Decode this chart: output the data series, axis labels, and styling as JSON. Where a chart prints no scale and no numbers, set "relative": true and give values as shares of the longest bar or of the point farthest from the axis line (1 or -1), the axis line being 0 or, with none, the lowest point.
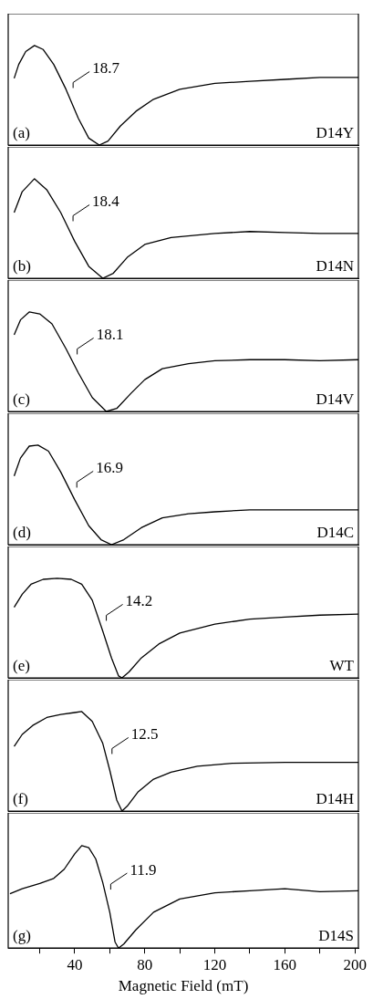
{
  "chart_data": [
    {
      "type": "line",
      "relative": true,
      "tick_labels": false,
      "marker": "none",
      "xlim": [
        2,
        202
      ],
      "x": [
        5.4,
        8,
        12,
        17,
        22,
        28,
        35,
        42,
        48,
        54,
        59,
        66,
        75,
        85,
        100,
        120,
        140,
        160,
        180,
        202
      ],
      "series": [
        {
          "color": "#000000",
          "values": [
            0.67,
            0.81,
            0.94,
            1.0,
            0.96,
            0.81,
            0.56,
            0.27,
            0.07,
            0,
            0.04,
            0.19,
            0.34,
            0.46,
            0.56,
            0.62,
            0.64,
            0.66,
            0.68,
            0.68
          ]
        }
      ],
      "annotations": [
        "(a)",
        "D14Y",
        "18.7"
      ]
    },
    {
      "type": "line",
      "relative": true,
      "tick_labels": false,
      "marker": "none",
      "xlim": [
        2,
        202
      ],
      "x": [
        5.4,
        10,
        17,
        24,
        32,
        40,
        48,
        56,
        62,
        70,
        80,
        95,
        120,
        140,
        160,
        180,
        202
      ],
      "series": [
        {
          "color": "#000000",
          "values": [
            0.66,
            0.87,
            1.0,
            0.89,
            0.66,
            0.37,
            0.12,
            0,
            0.05,
            0.21,
            0.34,
            0.41,
            0.45,
            0.47,
            0.46,
            0.45,
            0.45
          ]
        }
      ],
      "annotations": [
        "(b)",
        "D14N",
        "18.4"
      ]
    },
    {
      "type": "line",
      "relative": true,
      "tick_labels": false,
      "marker": "none",
      "xlim": [
        2,
        202
      ],
      "x": [
        5.4,
        9,
        14,
        20,
        27,
        35,
        42,
        50,
        58,
        64,
        72,
        80,
        90,
        105,
        120,
        140,
        160,
        180,
        202
      ],
      "series": [
        {
          "color": "#000000",
          "values": [
            0.77,
            0.92,
            1.0,
            0.98,
            0.88,
            0.63,
            0.39,
            0.14,
            0,
            0.03,
            0.18,
            0.32,
            0.43,
            0.48,
            0.51,
            0.52,
            0.52,
            0.51,
            0.52
          ]
        }
      ],
      "annotations": [
        "(c)",
        "D14V",
        "18.1"
      ]
    },
    {
      "type": "line",
      "relative": true,
      "tick_labels": false,
      "marker": "none",
      "xlim": [
        2,
        202
      ],
      "x": [
        5.4,
        9,
        14,
        19,
        25,
        32,
        40,
        48,
        55,
        61,
        68,
        78,
        90,
        105,
        120,
        140,
        160,
        180,
        202
      ],
      "series": [
        {
          "color": "#000000",
          "values": [
            0.69,
            0.87,
            0.99,
            1.0,
            0.94,
            0.73,
            0.45,
            0.19,
            0.05,
            0,
            0.05,
            0.17,
            0.27,
            0.31,
            0.33,
            0.35,
            0.35,
            0.35,
            0.35
          ]
        }
      ],
      "annotations": [
        "(d)",
        "D14C",
        "16.9"
      ]
    },
    {
      "type": "line",
      "relative": true,
      "tick_labels": false,
      "marker": "none",
      "xlim": [
        2,
        202
      ],
      "x": [
        5.4,
        10,
        15,
        22,
        30,
        38,
        44,
        50,
        56,
        61,
        65,
        67,
        71,
        78,
        88,
        100,
        120,
        140,
        160,
        180,
        202
      ],
      "series": [
        {
          "color": "#000000",
          "values": [
            0.71,
            0.84,
            0.94,
            0.99,
            1.0,
            0.99,
            0.94,
            0.78,
            0.47,
            0.2,
            0.02,
            0,
            0.06,
            0.2,
            0.34,
            0.45,
            0.54,
            0.59,
            0.61,
            0.63,
            0.64
          ]
        }
      ],
      "annotations": [
        "(e)",
        "WT",
        "14.2"
      ]
    },
    {
      "type": "line",
      "relative": true,
      "tick_labels": false,
      "marker": "none",
      "xlim": [
        2,
        202
      ],
      "x": [
        5.4,
        10,
        16,
        24,
        32,
        40,
        44,
        50,
        56,
        60,
        64,
        67,
        70,
        76,
        85,
        95,
        110,
        130,
        160,
        180,
        202
      ],
      "series": [
        {
          "color": "#000000",
          "values": [
            0.65,
            0.77,
            0.86,
            0.94,
            0.97,
            0.99,
            1.0,
            0.9,
            0.68,
            0.41,
            0.11,
            0,
            0.05,
            0.19,
            0.32,
            0.39,
            0.45,
            0.48,
            0.49,
            0.49,
            0.49
          ]
        }
      ],
      "annotations": [
        "(f)",
        "D14H",
        "12.5"
      ]
    },
    {
      "type": "line",
      "relative": true,
      "tick_labels": "x",
      "marker": "none",
      "xlim": [
        2,
        202
      ],
      "xlabel": "Magnetic Field (mT)",
      "xticks": [
        {
          "value": 20,
          "label": null
        },
        40,
        {
          "value": 60,
          "label": null
        },
        80,
        {
          "value": 100,
          "label": null
        },
        120,
        {
          "value": 140,
          "label": null
        },
        160,
        {
          "value": 180,
          "label": null
        },
        200
      ],
      "x": [
        3,
        10,
        20,
        28,
        34,
        40,
        44,
        48,
        52,
        56,
        60,
        63,
        65,
        68,
        75,
        85,
        100,
        120,
        140,
        160,
        180,
        202
      ],
      "series": [
        {
          "color": "#000000",
          "values": [
            0.53,
            0.58,
            0.63,
            0.68,
            0.77,
            0.92,
            1.0,
            0.98,
            0.87,
            0.64,
            0.35,
            0.06,
            0,
            0.04,
            0.18,
            0.35,
            0.48,
            0.54,
            0.56,
            0.58,
            0.55,
            0.56
          ]
        }
      ],
      "annotations": [
        "(g)",
        "D14S",
        "11.9"
      ]
    }
  ]
}
